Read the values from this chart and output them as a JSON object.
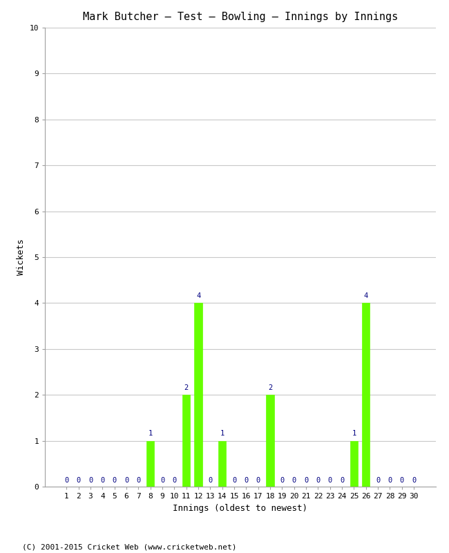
{
  "title": "Mark Butcher – Test – Bowling – Innings by Innings",
  "xlabel": "Innings (oldest to newest)",
  "ylabel": "Wickets",
  "footnote": "(C) 2001-2015 Cricket Web (www.cricketweb.net)",
  "ylim": [
    0,
    10
  ],
  "yticks": [
    0,
    1,
    2,
    3,
    4,
    5,
    6,
    7,
    8,
    9,
    10
  ],
  "num_innings": 30,
  "wickets": [
    0,
    0,
    0,
    0,
    0,
    0,
    0,
    1,
    0,
    0,
    2,
    4,
    0,
    1,
    0,
    0,
    0,
    2,
    0,
    0,
    0,
    0,
    0,
    0,
    1,
    4,
    0,
    0,
    0,
    0
  ],
  "bar_color": "#66ff00",
  "bar_edge_color": "#66ff00",
  "label_color": "#000080",
  "grid_color": "#c8c8c8",
  "background_color": "#ffffff",
  "title_fontsize": 11,
  "label_fontsize": 9,
  "tick_fontsize": 8,
  "footnote_fontsize": 8,
  "annotation_fontsize": 7.5
}
